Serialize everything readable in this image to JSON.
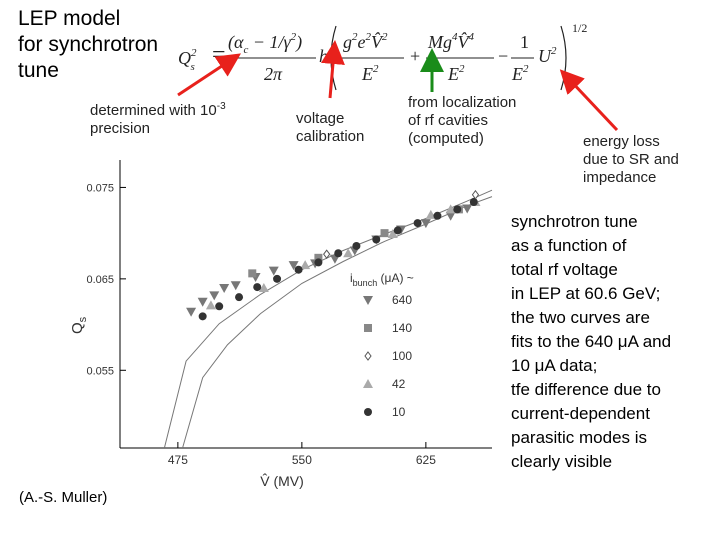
{
  "slide": {
    "title": "LEP model\nfor synchrotron\ntune",
    "annotations": {
      "precision_prefix": "determined with 10",
      "precision_exp": "-3",
      "precision_suffix": "precision",
      "voltage": "voltage\ncalibration",
      "localization": "from localization\nof rf cavities\n(computed)",
      "energy_loss": "energy loss\ndue to SR and\nimpedance"
    },
    "description": [
      "synchrotron tune",
      "as a function of",
      "total rf voltage",
      "in LEP at 60.6 GeV;",
      "the two curves are",
      "fits to the 640 μA and",
      "10 μA data;",
      "tfe difference due to",
      "current-dependent",
      "parasitic modes is",
      "clearly visible"
    ],
    "credit": "(A.-S. Muller)",
    "arrow_colors": {
      "red": "#e8211c",
      "green": "#1a8c1a"
    }
  },
  "formula": {
    "lhs": "Q",
    "lhs_sub": "s",
    "lhs_sup": "2",
    "term1_num": "(α",
    "term1_num_sub": "c",
    "term1_num_rest": " − 1/γ",
    "term1_num_sup": "2",
    "term1_num_close": ")",
    "term1_den": "2π",
    "h": "h",
    "term2_num": "g",
    "term2_num_sup": "2",
    "term2_num_rest": "e",
    "term2_num_rest_sup": "2",
    "term2_v": "V̂",
    "term2_v_sup": "2",
    "term2_den": "E",
    "term2_den_sup": "2",
    "plus": "+",
    "term3_num": "Mg",
    "term3_num_sup": "4",
    "term3_v": "V̂",
    "term3_v_sup": "4",
    "term3_den": "E",
    "term3_den_sup": "2",
    "minus": "−",
    "term4_num": "1",
    "term4_den": "E",
    "term4_den_sup": "2",
    "u": "U",
    "u_sup": "2",
    "power": "1/2"
  },
  "chart_data": {
    "type": "scatter",
    "xlabel": "V̂ (MV)",
    "ylabel": "Q",
    "ylabel_sub": "s",
    "xlim": [
      440,
      665
    ],
    "ylim": [
      0.0465,
      0.078
    ],
    "xticks": [
      475,
      550,
      625
    ],
    "xtick_labels": [
      "475",
      "550",
      "625"
    ],
    "yticks": [
      0.055,
      0.065,
      0.075
    ],
    "ytick_labels": [
      "0.055",
      "0.065",
      "0.075"
    ],
    "legend_title": "i",
    "legend_title_sub": "bunch",
    "legend_title_rest": " (μA) ~",
    "legend_placement": "right",
    "series": [
      {
        "name": "640",
        "marker": "triangle-down",
        "color": "#777777",
        "points": [
          [
            483,
            0.0614
          ],
          [
            490,
            0.0625
          ],
          [
            497,
            0.0632
          ],
          [
            503,
            0.064
          ],
          [
            510,
            0.0643
          ],
          [
            522,
            0.0652
          ],
          [
            533,
            0.0659
          ],
          [
            545,
            0.0665
          ],
          [
            558,
            0.0667
          ],
          [
            570,
            0.0672
          ],
          [
            582,
            0.0681
          ],
          [
            595,
            0.0693
          ],
          [
            610,
            0.0704
          ],
          [
            625,
            0.0711
          ],
          [
            640,
            0.0719
          ],
          [
            650,
            0.0727
          ]
        ]
      },
      {
        "name": "140",
        "marker": "square",
        "color": "#888888",
        "points": [
          [
            520,
            0.0656
          ],
          [
            560,
            0.0673
          ],
          [
            600,
            0.07
          ],
          [
            645,
            0.0726
          ]
        ]
      },
      {
        "name": "100",
        "marker": "diamond-open",
        "color": "#555555",
        "points": [
          [
            655,
            0.0742
          ],
          [
            565,
            0.0677
          ]
        ]
      },
      {
        "name": "42",
        "marker": "triangle-up",
        "color": "#aaaaaa",
        "points": [
          [
            495,
            0.0621
          ],
          [
            527,
            0.064
          ],
          [
            552,
            0.0665
          ],
          [
            578,
            0.0678
          ],
          [
            605,
            0.0699
          ],
          [
            628,
            0.072
          ],
          [
            640,
            0.0726
          ],
          [
            655,
            0.0734
          ]
        ]
      },
      {
        "name": "10",
        "marker": "circle",
        "color": "#333333",
        "points": [
          [
            490,
            0.0609
          ],
          [
            500,
            0.062
          ],
          [
            512,
            0.063
          ],
          [
            523,
            0.0641
          ],
          [
            535,
            0.065
          ],
          [
            548,
            0.066
          ],
          [
            560,
            0.0668
          ],
          [
            572,
            0.0678
          ],
          [
            583,
            0.0686
          ],
          [
            595,
            0.0693
          ],
          [
            608,
            0.0703
          ],
          [
            620,
            0.0711
          ],
          [
            632,
            0.0719
          ],
          [
            644,
            0.0726
          ],
          [
            654,
            0.0734
          ]
        ]
      }
    ],
    "fits": [
      {
        "name": "fit-640",
        "points": [
          [
            478,
            0.0466
          ],
          [
            490,
            0.0542
          ],
          [
            505,
            0.0578
          ],
          [
            525,
            0.0612
          ],
          [
            550,
            0.0645
          ],
          [
            575,
            0.0669
          ],
          [
            600,
            0.0691
          ],
          [
            625,
            0.071
          ],
          [
            650,
            0.073
          ],
          [
            665,
            0.074
          ]
        ]
      },
      {
        "name": "fit-10",
        "points": [
          [
            467,
            0.0466
          ],
          [
            480,
            0.056
          ],
          [
            500,
            0.0601
          ],
          [
            525,
            0.0633
          ],
          [
            550,
            0.066
          ],
          [
            575,
            0.0681
          ],
          [
            600,
            0.0699
          ],
          [
            625,
            0.0716
          ],
          [
            650,
            0.0735
          ],
          [
            665,
            0.0747
          ]
        ]
      }
    ]
  }
}
